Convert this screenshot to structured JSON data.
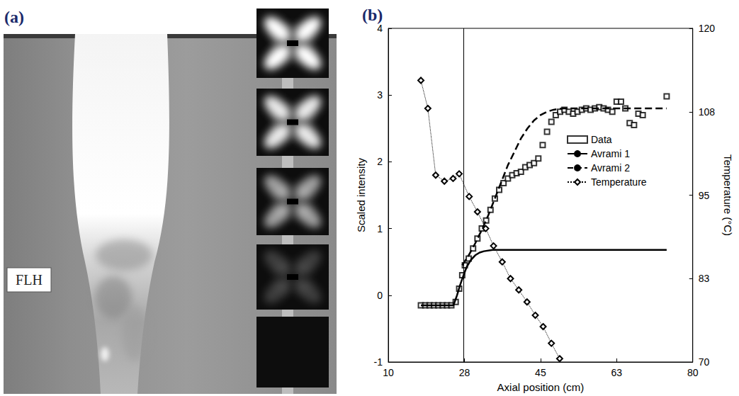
{
  "panel_a": {
    "label": "(a)",
    "annotation": "FLH"
  },
  "chart_data": {
    "type": "line",
    "panel_label": "(b)",
    "xlabel": "Axial position (cm)",
    "ylabel": "Scaled intensity",
    "y2label": "Temperature (°C)",
    "xlim": [
      10,
      80
    ],
    "xticks": [
      10,
      {
        "value": 27.5,
        "label": "28"
      },
      45,
      {
        "value": 62.5,
        "label": "63"
      },
      80
    ],
    "ylim": [
      -1,
      4
    ],
    "yticks": [
      -1,
      0,
      1,
      2,
      3,
      4
    ],
    "y2lim": [
      70,
      120
    ],
    "y2ticks": [
      70,
      {
        "value": 82.5,
        "label": "83"
      },
      95,
      {
        "value": 107.5,
        "label": "108"
      },
      120
    ],
    "grid": false,
    "legend": "right",
    "vline_x": 27.3,
    "series": [
      {
        "name": "Data",
        "type": "scatter",
        "marker": "square",
        "color": "#000000",
        "x": [
          17.5,
          18.5,
          19.5,
          20.5,
          21.5,
          22.5,
          23.5,
          24.5,
          25.5,
          26.3,
          27.0,
          27.6,
          28.5,
          29.5,
          30.5,
          31.5,
          32.5,
          33.5,
          34.5,
          35.5,
          36.5,
          37.5,
          38.5,
          39.5,
          40.5,
          41.5,
          42.5,
          43.5,
          44.5,
          45.5,
          46.5,
          47.5,
          48.5,
          49.5,
          50.5,
          51.5,
          52.5,
          53.5,
          54.5,
          55.5,
          56.5,
          57.5,
          58.5,
          59.5,
          60.5,
          61.5,
          62.5,
          63.5,
          64.5,
          65.5,
          66.5,
          67.5,
          68.5,
          74.0
        ],
        "values": [
          -0.15,
          -0.15,
          -0.15,
          -0.15,
          -0.15,
          -0.15,
          -0.15,
          -0.15,
          -0.1,
          0.1,
          0.3,
          0.45,
          0.55,
          0.7,
          0.85,
          1.0,
          1.12,
          1.28,
          1.45,
          1.58,
          1.68,
          1.75,
          1.8,
          1.83,
          1.85,
          1.92,
          1.95,
          1.98,
          2.05,
          2.25,
          2.45,
          2.6,
          2.7,
          2.75,
          2.78,
          2.75,
          2.72,
          2.75,
          2.78,
          2.8,
          2.78,
          2.8,
          2.82,
          2.8,
          2.78,
          2.75,
          2.9,
          2.9,
          2.8,
          2.58,
          2.55,
          2.72,
          2.7,
          2.98
        ]
      },
      {
        "name": "Avrami 1",
        "type": "line",
        "line_style": "solid",
        "color": "#000000",
        "x": [
          17.5,
          25.0,
          25.8,
          26.5,
          27.3,
          28.0,
          29.0,
          30.0,
          31.0,
          32.0,
          34.0,
          74.0
        ],
        "values": [
          -0.15,
          -0.15,
          0.0,
          0.15,
          0.3,
          0.42,
          0.53,
          0.6,
          0.64,
          0.66,
          0.68,
          0.68
        ]
      },
      {
        "name": "Avrami 2",
        "type": "line",
        "line_style": "dashed",
        "color": "#000000",
        "x": [
          27.0,
          28.5,
          30.0,
          31.5,
          33.0,
          34.5,
          36.0,
          37.5,
          39.0,
          40.5,
          42.0,
          43.5,
          45.0,
          46.5,
          48.0,
          50.0,
          74.0
        ],
        "values": [
          0.45,
          0.6,
          0.78,
          0.98,
          1.2,
          1.45,
          1.7,
          1.95,
          2.15,
          2.35,
          2.5,
          2.62,
          2.7,
          2.75,
          2.78,
          2.8,
          2.8
        ]
      },
      {
        "name": "Temperature",
        "type": "line",
        "line_style": "dotted",
        "marker": "diamond",
        "color": "#000000",
        "axis": "y2",
        "x": [
          17.5,
          19.1,
          20.9,
          22.9,
          24.9,
          26.3,
          28.6,
          30.5,
          32.4,
          34.2,
          36.2,
          38.1,
          40.0,
          41.9,
          43.8,
          45.6,
          47.5,
          49.4
        ],
        "values": [
          112.2,
          108,
          98,
          97.1,
          97.5,
          98.2,
          94.8,
          92.5,
          90,
          87.4,
          85,
          82.5,
          80.8,
          79,
          77,
          75.3,
          72.8,
          70.5
        ]
      }
    ]
  }
}
